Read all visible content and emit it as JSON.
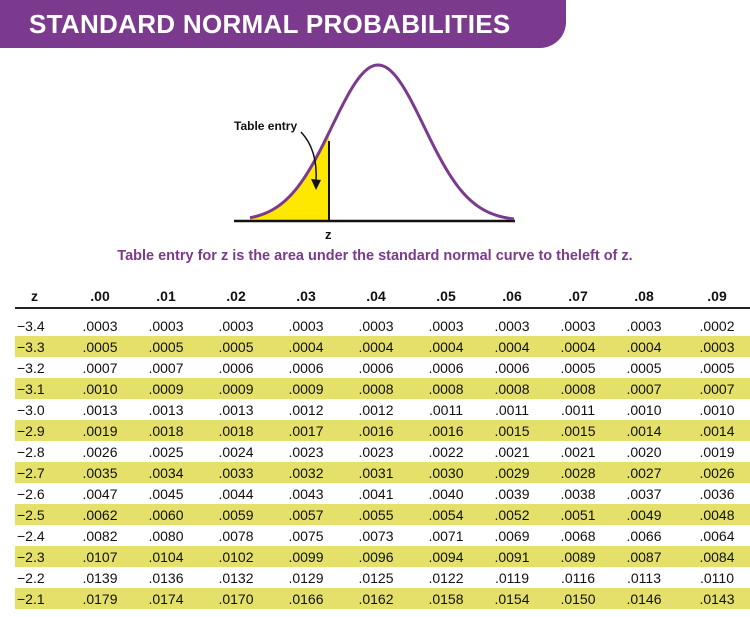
{
  "header": {
    "title": "STANDARD NORMAL PROBABILITIES"
  },
  "diagram": {
    "table_entry_label": "Table entry",
    "z_label": "z",
    "caption": "Table entry for z is the area under the standard normal curve to theleft of z.",
    "colors": {
      "curve": "#7b3a8e",
      "shaded": "#ffe800",
      "axis": "#111111"
    }
  },
  "table": {
    "columns": [
      "z",
      ".00",
      ".01",
      ".02",
      ".03",
      ".04",
      ".05",
      ".06",
      ".07",
      ".08",
      ".09"
    ],
    "rows": [
      {
        "z": "−3.4",
        "values": [
          ".0003",
          ".0003",
          ".0003",
          ".0003",
          ".0003",
          ".0003",
          ".0003",
          ".0003",
          ".0003",
          ".0002"
        ]
      },
      {
        "z": "−3.3",
        "values": [
          ".0005",
          ".0005",
          ".0005",
          ".0004",
          ".0004",
          ".0004",
          ".0004",
          ".0004",
          ".0004",
          ".0003"
        ]
      },
      {
        "z": "−3.2",
        "values": [
          ".0007",
          ".0007",
          ".0006",
          ".0006",
          ".0006",
          ".0006",
          ".0006",
          ".0005",
          ".0005",
          ".0005"
        ]
      },
      {
        "z": "−3.1",
        "values": [
          ".0010",
          ".0009",
          ".0009",
          ".0009",
          ".0008",
          ".0008",
          ".0008",
          ".0008",
          ".0007",
          ".0007"
        ]
      },
      {
        "z": "−3.0",
        "values": [
          ".0013",
          ".0013",
          ".0013",
          ".0012",
          ".0012",
          ".0011",
          ".0011",
          ".0011",
          ".0010",
          ".0010"
        ]
      },
      {
        "z": "−2.9",
        "values": [
          ".0019",
          ".0018",
          ".0018",
          ".0017",
          ".0016",
          ".0016",
          ".0015",
          ".0015",
          ".0014",
          ".0014"
        ]
      },
      {
        "z": "−2.8",
        "values": [
          ".0026",
          ".0025",
          ".0024",
          ".0023",
          ".0023",
          ".0022",
          ".0021",
          ".0021",
          ".0020",
          ".0019"
        ]
      },
      {
        "z": "−2.7",
        "values": [
          ".0035",
          ".0034",
          ".0033",
          ".0032",
          ".0031",
          ".0030",
          ".0029",
          ".0028",
          ".0027",
          ".0026"
        ]
      },
      {
        "z": "−2.6",
        "values": [
          ".0047",
          ".0045",
          ".0044",
          ".0043",
          ".0041",
          ".0040",
          ".0039",
          ".0038",
          ".0037",
          ".0036"
        ]
      },
      {
        "z": "−2.5",
        "values": [
          ".0062",
          ".0060",
          ".0059",
          ".0057",
          ".0055",
          ".0054",
          ".0052",
          ".0051",
          ".0049",
          ".0048"
        ]
      },
      {
        "z": "−2.4",
        "values": [
          ".0082",
          ".0080",
          ".0078",
          ".0075",
          ".0073",
          ".0071",
          ".0069",
          ".0068",
          ".0066",
          ".0064"
        ]
      },
      {
        "z": "−2.3",
        "values": [
          ".0107",
          ".0104",
          ".0102",
          ".0099",
          ".0096",
          ".0094",
          ".0091",
          ".0089",
          ".0087",
          ".0084"
        ]
      },
      {
        "z": "−2.2",
        "values": [
          ".0139",
          ".0136",
          ".0132",
          ".0129",
          ".0125",
          ".0122",
          ".0119",
          ".0116",
          ".0113",
          ".0110"
        ]
      },
      {
        "z": "−2.1",
        "values": [
          ".0179",
          ".0174",
          ".0170",
          ".0166",
          ".0162",
          ".0158",
          ".0154",
          ".0150",
          ".0146",
          ".0143"
        ]
      }
    ],
    "row_highlight_color": "#e5e06a"
  }
}
